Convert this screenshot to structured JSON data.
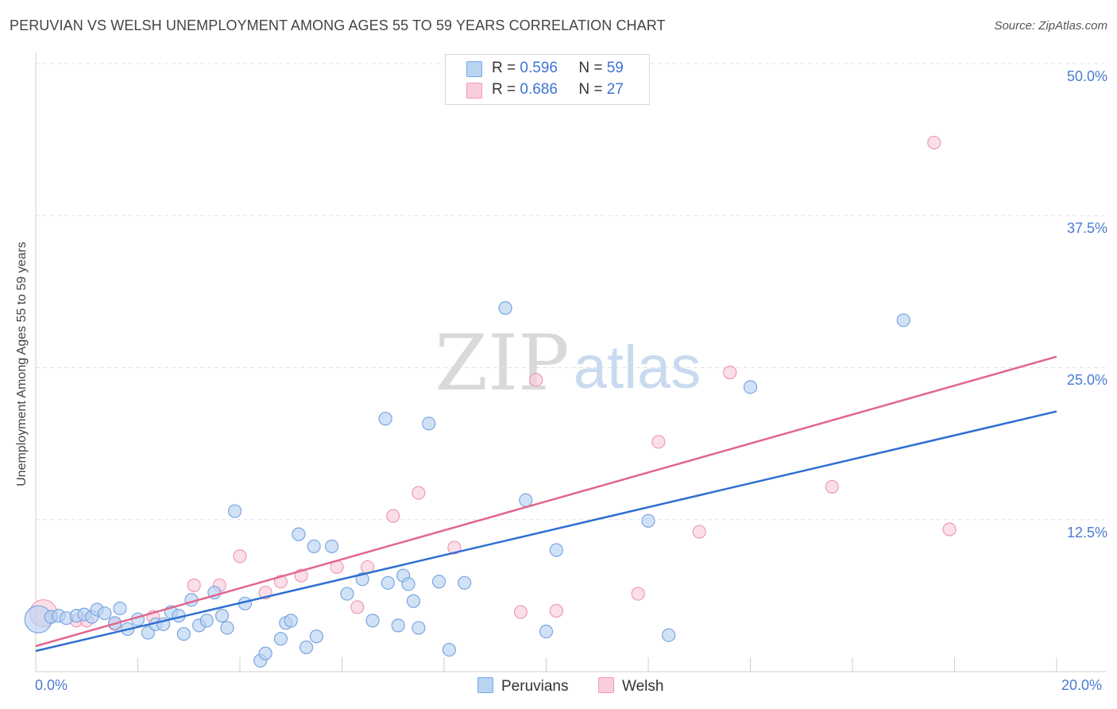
{
  "chart_data": {
    "type": "scatter",
    "title": "PERUVIAN VS WELSH UNEMPLOYMENT AMONG AGES 55 TO 59 YEARS CORRELATION CHART",
    "source": "Source: ZipAtlas.com",
    "ylabel": "Unemployment Among Ages 55 to 59 years",
    "xlabel": "",
    "xlim": [
      0,
      20
    ],
    "ylim": [
      0,
      50
    ],
    "x_tick_labels": [
      "0.0%",
      "20.0%"
    ],
    "y_ticks": [
      12.5,
      25.0,
      37.5,
      50.0
    ],
    "y_tick_labels": [
      "12.5%",
      "25.0%",
      "37.5%",
      "50.0%"
    ],
    "watermark": {
      "zip": "ZIP",
      "atlas": "atlas"
    },
    "legend": {
      "rows": [
        {
          "r_label": "R =",
          "r_value": "0.596",
          "n_label": "N =",
          "n_value": "59"
        },
        {
          "r_label": "R =",
          "r_value": "0.686",
          "n_label": "N =",
          "n_value": "27"
        }
      ]
    },
    "colors": {
      "peruvians_fill": "#b9d3f2",
      "peruvians_stroke": "#7aa6e0",
      "peruvians_line": "#2e6fd1",
      "welsh_fill": "#f9cedb",
      "welsh_stroke": "#ee9ab4",
      "welsh_line": "#e06690",
      "grid": "#dde2ea",
      "axis_label": "#4a7bd0"
    },
    "series": [
      {
        "name": "Peruvians",
        "trend": {
          "x": [
            0,
            20
          ],
          "y": [
            1.7,
            21.4
          ]
        },
        "points": [
          {
            "x": 0.05,
            "y": 4.3,
            "big": true
          },
          {
            "x": 0.3,
            "y": 4.5
          },
          {
            "x": 0.45,
            "y": 4.6
          },
          {
            "x": 0.6,
            "y": 4.4
          },
          {
            "x": 0.8,
            "y": 4.6
          },
          {
            "x": 0.95,
            "y": 4.7
          },
          {
            "x": 1.1,
            "y": 4.5
          },
          {
            "x": 1.2,
            "y": 5.1
          },
          {
            "x": 1.35,
            "y": 4.8
          },
          {
            "x": 1.55,
            "y": 4.0
          },
          {
            "x": 1.65,
            "y": 5.2
          },
          {
            "x": 1.8,
            "y": 3.5
          },
          {
            "x": 2.0,
            "y": 4.3
          },
          {
            "x": 2.2,
            "y": 3.2
          },
          {
            "x": 2.35,
            "y": 3.9
          },
          {
            "x": 2.5,
            "y": 3.9
          },
          {
            "x": 2.65,
            "y": 4.9
          },
          {
            "x": 2.8,
            "y": 4.6
          },
          {
            "x": 2.9,
            "y": 3.1
          },
          {
            "x": 3.05,
            "y": 5.9
          },
          {
            "x": 3.2,
            "y": 3.8
          },
          {
            "x": 3.35,
            "y": 4.2
          },
          {
            "x": 3.5,
            "y": 6.5
          },
          {
            "x": 3.65,
            "y": 4.6
          },
          {
            "x": 3.75,
            "y": 3.6
          },
          {
            "x": 3.9,
            "y": 13.2
          },
          {
            "x": 4.1,
            "y": 5.6
          },
          {
            "x": 4.4,
            "y": 0.9
          },
          {
            "x": 4.5,
            "y": 1.5
          },
          {
            "x": 4.8,
            "y": 2.7
          },
          {
            "x": 4.9,
            "y": 4.0
          },
          {
            "x": 5.0,
            "y": 4.2
          },
          {
            "x": 5.15,
            "y": 11.3
          },
          {
            "x": 5.3,
            "y": 2.0
          },
          {
            "x": 5.5,
            "y": 2.9
          },
          {
            "x": 5.45,
            "y": 10.3
          },
          {
            "x": 5.8,
            "y": 10.3
          },
          {
            "x": 6.1,
            "y": 6.4
          },
          {
            "x": 6.4,
            "y": 7.6
          },
          {
            "x": 6.6,
            "y": 4.2
          },
          {
            "x": 6.9,
            "y": 7.3
          },
          {
            "x": 7.1,
            "y": 3.8
          },
          {
            "x": 7.2,
            "y": 7.9
          },
          {
            "x": 7.3,
            "y": 7.2
          },
          {
            "x": 7.5,
            "y": 3.6
          },
          {
            "x": 7.7,
            "y": 20.4
          },
          {
            "x": 7.4,
            "y": 5.8
          },
          {
            "x": 7.9,
            "y": 7.4
          },
          {
            "x": 8.1,
            "y": 1.8
          },
          {
            "x": 8.4,
            "y": 7.3
          },
          {
            "x": 9.2,
            "y": 29.9
          },
          {
            "x": 9.6,
            "y": 14.1
          },
          {
            "x": 10.0,
            "y": 3.3
          },
          {
            "x": 10.2,
            "y": 10.0
          },
          {
            "x": 12.0,
            "y": 12.4
          },
          {
            "x": 12.4,
            "y": 3.0
          },
          {
            "x": 14.0,
            "y": 23.4
          },
          {
            "x": 17.0,
            "y": 28.9
          },
          {
            "x": 6.85,
            "y": 20.8
          }
        ]
      },
      {
        "name": "Welsh",
        "trend": {
          "x": [
            0,
            20
          ],
          "y": [
            2.1,
            25.9
          ]
        },
        "points": [
          {
            "x": 0.15,
            "y": 4.8,
            "big": true
          },
          {
            "x": 0.8,
            "y": 4.2
          },
          {
            "x": 1.0,
            "y": 4.2
          },
          {
            "x": 1.55,
            "y": 3.9
          },
          {
            "x": 2.3,
            "y": 4.5
          },
          {
            "x": 3.1,
            "y": 7.1
          },
          {
            "x": 3.6,
            "y": 7.1
          },
          {
            "x": 4.0,
            "y": 9.5
          },
          {
            "x": 4.5,
            "y": 6.5
          },
          {
            "x": 4.8,
            "y": 7.4
          },
          {
            "x": 5.2,
            "y": 7.9
          },
          {
            "x": 5.9,
            "y": 8.6
          },
          {
            "x": 6.3,
            "y": 5.3
          },
          {
            "x": 6.5,
            "y": 8.6
          },
          {
            "x": 7.0,
            "y": 12.8
          },
          {
            "x": 7.5,
            "y": 14.7
          },
          {
            "x": 8.2,
            "y": 10.2
          },
          {
            "x": 9.5,
            "y": 4.9
          },
          {
            "x": 9.8,
            "y": 24.0
          },
          {
            "x": 10.2,
            "y": 5.0
          },
          {
            "x": 11.8,
            "y": 6.4
          },
          {
            "x": 12.2,
            "y": 18.9
          },
          {
            "x": 13.0,
            "y": 11.5
          },
          {
            "x": 13.6,
            "y": 24.6
          },
          {
            "x": 15.6,
            "y": 15.2
          },
          {
            "x": 17.6,
            "y": 43.5
          },
          {
            "x": 17.9,
            "y": 11.7
          }
        ]
      }
    ]
  }
}
